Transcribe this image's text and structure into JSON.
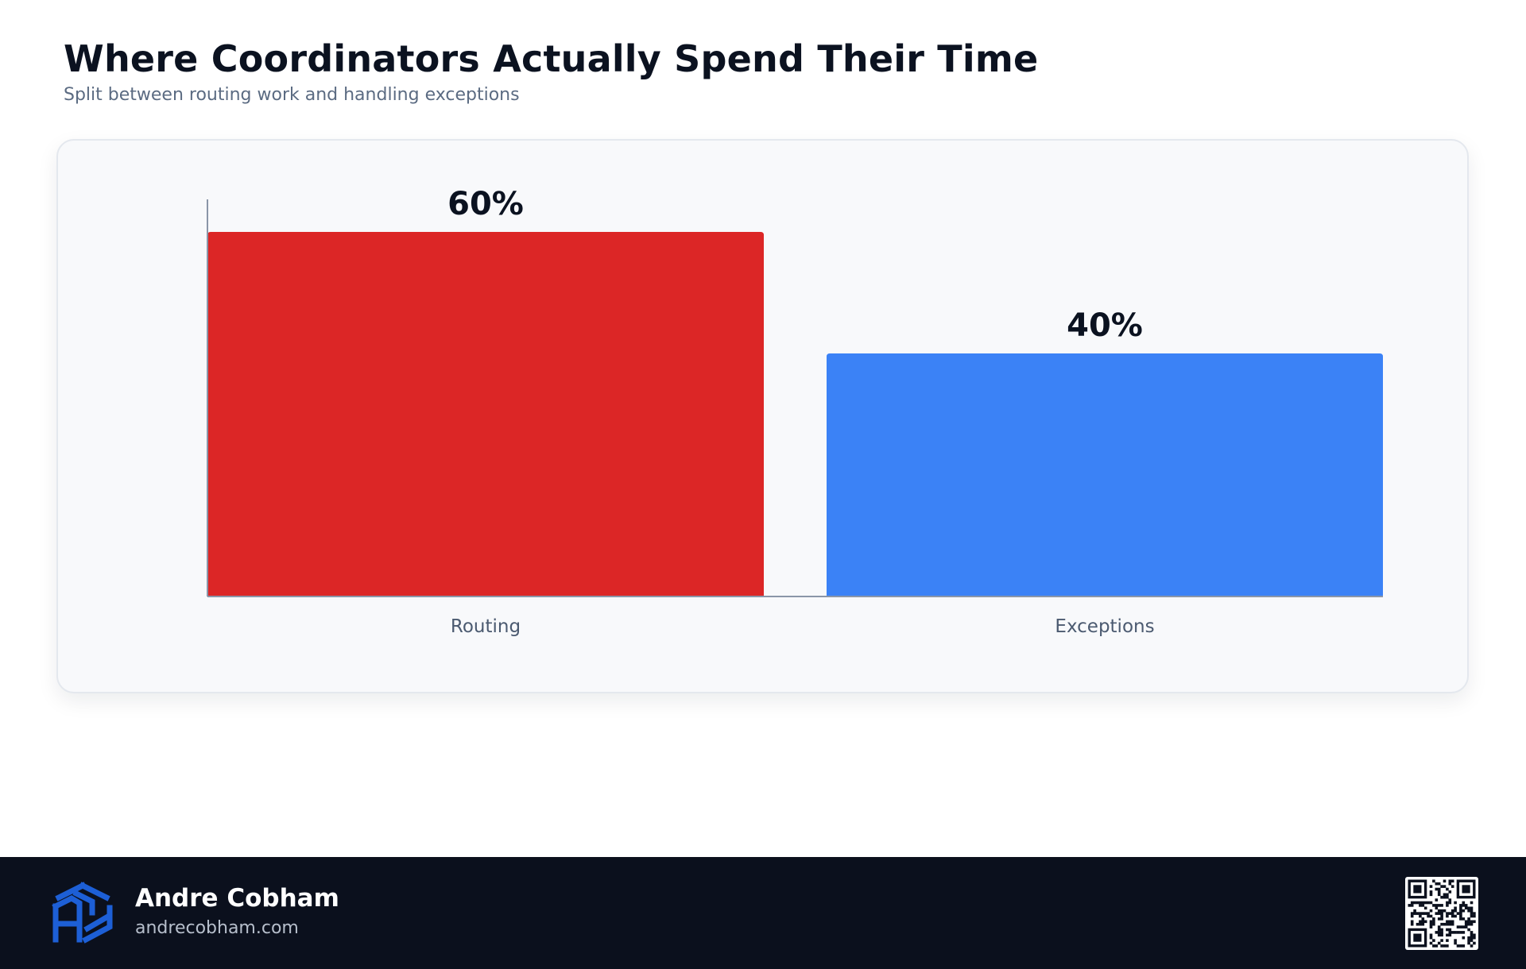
{
  "header": {
    "title": "Where Coordinators Actually Spend Their Time",
    "subtitle": "Split between routing work and handling exceptions"
  },
  "chart_data": {
    "type": "bar",
    "title": "",
    "xlabel": "",
    "ylabel": "",
    "categories": [
      "Routing",
      "Exceptions"
    ],
    "values": [
      60,
      40
    ],
    "value_labels": [
      "60%",
      "40%"
    ],
    "colors": [
      "#dc2626",
      "#3b82f6"
    ],
    "ylim": [
      0,
      65
    ],
    "grid": false,
    "legend": "none"
  },
  "footer": {
    "name": "Andre Cobham",
    "website": "andrecobham.com",
    "logo_icon": "cube-logo-icon",
    "qr_icon": "qr-code-icon",
    "logo_color": "#1d5fd6"
  }
}
